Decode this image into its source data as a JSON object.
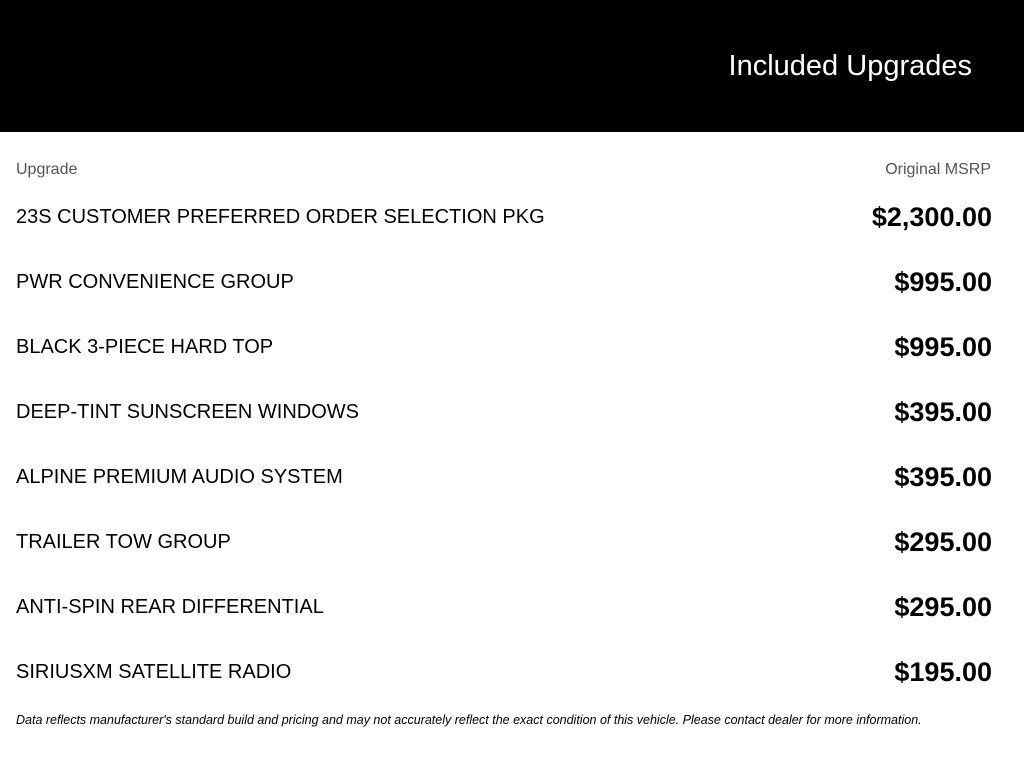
{
  "header": {
    "title": "Included Upgrades"
  },
  "table": {
    "columns": {
      "upgrade": "Upgrade",
      "msrp": "Original MSRP"
    },
    "rows": [
      {
        "name": "23S CUSTOMER PREFERRED ORDER SELECTION PKG",
        "price": "$2,300.00"
      },
      {
        "name": "PWR CONVENIENCE GROUP",
        "price": "$995.00"
      },
      {
        "name": "BLACK 3-PIECE HARD TOP",
        "price": "$995.00"
      },
      {
        "name": "DEEP-TINT SUNSCREEN WINDOWS",
        "price": "$395.00"
      },
      {
        "name": "ALPINE PREMIUM AUDIO SYSTEM",
        "price": "$395.00"
      },
      {
        "name": "TRAILER TOW GROUP",
        "price": "$295.00"
      },
      {
        "name": "ANTI-SPIN REAR DIFFERENTIAL",
        "price": "$295.00"
      },
      {
        "name": "SIRIUSXM SATELLITE RADIO",
        "price": "$195.00"
      }
    ]
  },
  "footnote": "Data reflects manufacturer's standard build and pricing and may not accurately reflect the exact condition of this vehicle. Please contact dealer for more information."
}
